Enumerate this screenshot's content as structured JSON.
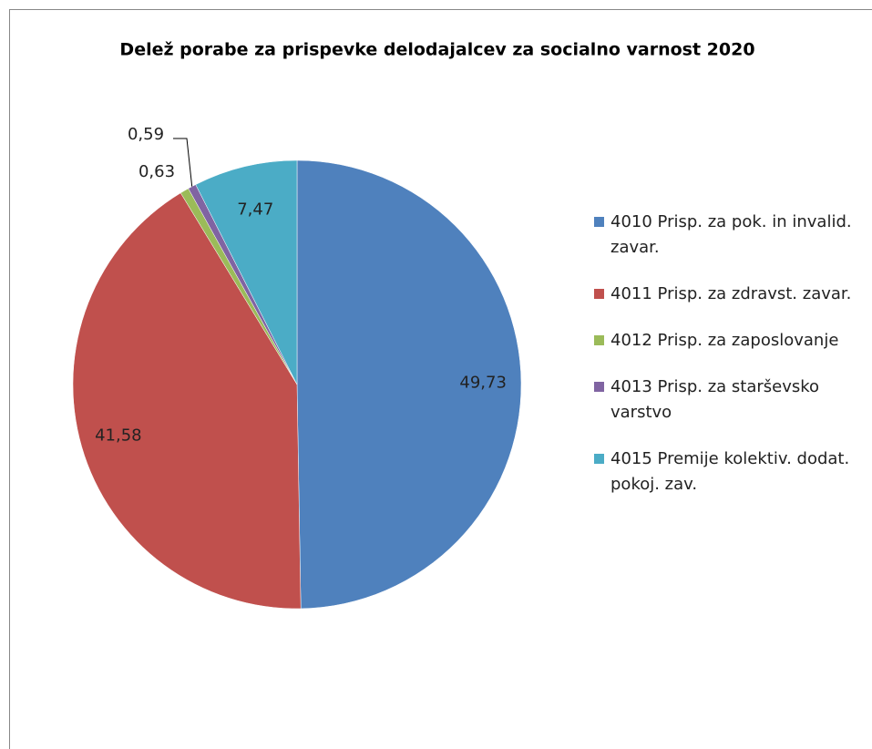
{
  "chart_data": {
    "type": "pie",
    "title": "Delež porabe za prispevke delodajalcev za socialno varnost 2020",
    "categories": [
      "4010 Prisp. za pok. in invalid. zavar.",
      "4011 Prisp. za zdravst. zavar.",
      "4012 Prisp. za zaposlovanje",
      "4013 Prisp. za starševsko varstvo",
      "4015 Premije kolektiv. dodat. pokoj. zav."
    ],
    "values": [
      49.73,
      41.58,
      0.63,
      0.59,
      7.47
    ],
    "value_labels": [
      "49,73",
      "41,58",
      "0,63",
      "0,59",
      "7,47"
    ],
    "colors": [
      "#4f81bd",
      "#c0504d",
      "#9bbb59",
      "#8064a2",
      "#4bacc6"
    ],
    "legend": "right"
  }
}
